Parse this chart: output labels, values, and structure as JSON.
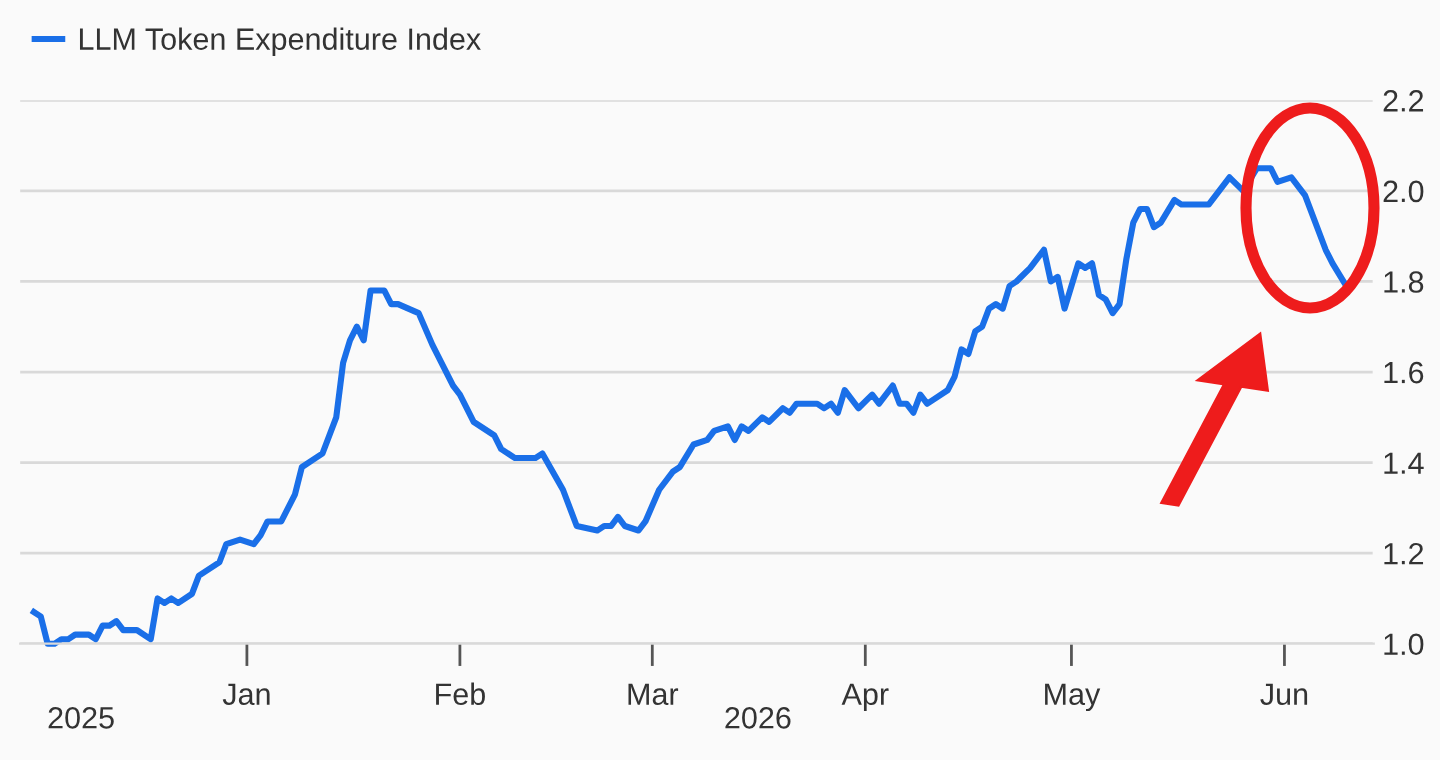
{
  "chart_data": {
    "type": "line",
    "x": [
      "2025-12-01",
      "2025-12-02",
      "2025-12-03",
      "2025-12-04",
      "2025-12-05",
      "2025-12-06",
      "2025-12-07",
      "2025-12-09",
      "2025-12-10",
      "2025-12-11",
      "2025-12-12",
      "2025-12-13",
      "2025-12-14",
      "2025-12-16",
      "2025-12-18",
      "2025-12-19",
      "2025-12-20",
      "2025-12-21",
      "2025-12-22",
      "2025-12-24",
      "2025-12-25",
      "2025-12-28",
      "2025-12-29",
      "2025-12-31",
      "2026-01-02",
      "2026-01-03",
      "2026-01-04",
      "2026-01-06",
      "2026-01-08",
      "2026-01-09",
      "2026-01-11",
      "2026-01-12",
      "2026-01-14",
      "2026-01-15",
      "2026-01-16",
      "2026-01-17",
      "2026-01-18",
      "2026-01-19",
      "2026-01-21",
      "2026-01-22",
      "2026-01-23",
      "2026-01-26",
      "2026-01-28",
      "2026-01-31",
      "2026-02-01",
      "2026-02-03",
      "2026-02-06",
      "2026-02-07",
      "2026-02-09",
      "2026-02-12",
      "2026-02-13",
      "2026-02-16",
      "2026-02-18",
      "2026-02-21",
      "2026-02-22",
      "2026-02-23",
      "2026-02-24",
      "2026-02-25",
      "2026-02-27",
      "2026-02-28",
      "2026-03-02",
      "2026-03-04",
      "2026-03-05",
      "2026-03-07",
      "2026-03-09",
      "2026-03-10",
      "2026-03-12",
      "2026-03-13",
      "2026-03-14",
      "2026-03-15",
      "2026-03-17",
      "2026-03-18",
      "2026-03-20",
      "2026-03-21",
      "2026-03-22",
      "2026-03-25",
      "2026-03-26",
      "2026-03-27",
      "2026-03-28",
      "2026-03-29",
      "2026-03-31",
      "2026-04-02",
      "2026-04-03",
      "2026-04-05",
      "2026-04-06",
      "2026-04-07",
      "2026-04-08",
      "2026-04-09",
      "2026-04-10",
      "2026-04-11",
      "2026-04-13",
      "2026-04-14",
      "2026-04-15",
      "2026-04-16",
      "2026-04-17",
      "2026-04-18",
      "2026-04-19",
      "2026-04-20",
      "2026-04-21",
      "2026-04-22",
      "2026-04-23",
      "2026-04-25",
      "2026-04-27",
      "2026-04-28",
      "2026-04-29",
      "2026-04-30",
      "2026-05-02",
      "2026-05-03",
      "2026-05-04",
      "2026-05-05",
      "2026-05-06",
      "2026-05-07",
      "2026-05-08",
      "2026-05-09",
      "2026-05-10",
      "2026-05-11",
      "2026-05-12",
      "2026-05-13",
      "2026-05-14",
      "2026-05-16",
      "2026-05-17",
      "2026-05-19",
      "2026-05-21",
      "2026-05-24",
      "2026-05-26",
      "2026-05-28",
      "2026-05-30",
      "2026-05-31",
      "2026-06-02",
      "2026-06-04",
      "2026-06-07",
      "2026-06-08",
      "2026-06-10"
    ],
    "series": [
      {
        "name": "LLM Token Expenditure Index",
        "color": "#1a6fe8",
        "values": [
          1.07,
          1.06,
          1.0,
          1.0,
          1.01,
          1.01,
          1.02,
          1.02,
          1.01,
          1.04,
          1.04,
          1.05,
          1.03,
          1.03,
          1.01,
          1.1,
          1.09,
          1.1,
          1.09,
          1.11,
          1.15,
          1.18,
          1.22,
          1.23,
          1.22,
          1.24,
          1.27,
          1.27,
          1.33,
          1.39,
          1.41,
          1.42,
          1.5,
          1.62,
          1.67,
          1.7,
          1.67,
          1.78,
          1.78,
          1.75,
          1.75,
          1.73,
          1.66,
          1.57,
          1.55,
          1.49,
          1.46,
          1.43,
          1.41,
          1.41,
          1.42,
          1.34,
          1.26,
          1.25,
          1.26,
          1.26,
          1.28,
          1.26,
          1.25,
          1.27,
          1.34,
          1.38,
          1.39,
          1.44,
          1.45,
          1.47,
          1.48,
          1.45,
          1.48,
          1.47,
          1.5,
          1.49,
          1.52,
          1.51,
          1.53,
          1.53,
          1.52,
          1.53,
          1.51,
          1.56,
          1.52,
          1.55,
          1.53,
          1.57,
          1.53,
          1.53,
          1.51,
          1.55,
          1.53,
          1.54,
          1.56,
          1.59,
          1.65,
          1.64,
          1.69,
          1.7,
          1.74,
          1.75,
          1.74,
          1.79,
          1.8,
          1.83,
          1.87,
          1.8,
          1.81,
          1.74,
          1.84,
          1.83,
          1.84,
          1.77,
          1.76,
          1.73,
          1.75,
          1.85,
          1.93,
          1.96,
          1.96,
          1.92,
          1.93,
          1.98,
          1.97,
          1.97,
          1.97,
          2.03,
          2.0,
          2.05,
          2.05,
          2.02,
          2.03,
          1.99,
          1.87,
          1.84,
          1.79
        ]
      }
    ],
    "xlim": [
      "2025-11-29",
      "2026-06-14"
    ],
    "xticks": [
      {
        "value": "2026-01-01",
        "label": "Jan"
      },
      {
        "value": "2026-02-01",
        "label": "Feb"
      },
      {
        "value": "2026-03-01",
        "label": "Mar"
      },
      {
        "value": "2026-04-01",
        "label": "Apr"
      },
      {
        "value": "2026-05-01",
        "label": "May"
      },
      {
        "value": "2026-06-01",
        "label": "Jun"
      }
    ],
    "ylim": [
      1.0,
      2.2
    ],
    "yticks": [
      {
        "value": 1.0,
        "label": "1.0"
      },
      {
        "value": 1.2,
        "label": "1.2"
      },
      {
        "value": 1.4,
        "label": "1.4"
      },
      {
        "value": 1.6,
        "label": "1.6"
      },
      {
        "value": 1.8,
        "label": "1.8"
      },
      {
        "value": 2.0,
        "label": "2.0"
      },
      {
        "value": 2.2,
        "label": "2.2"
      }
    ],
    "annotations": [
      "2025",
      "2026"
    ],
    "grid": "y",
    "legend": "top left",
    "marker": "none",
    "line_style": "solid"
  }
}
